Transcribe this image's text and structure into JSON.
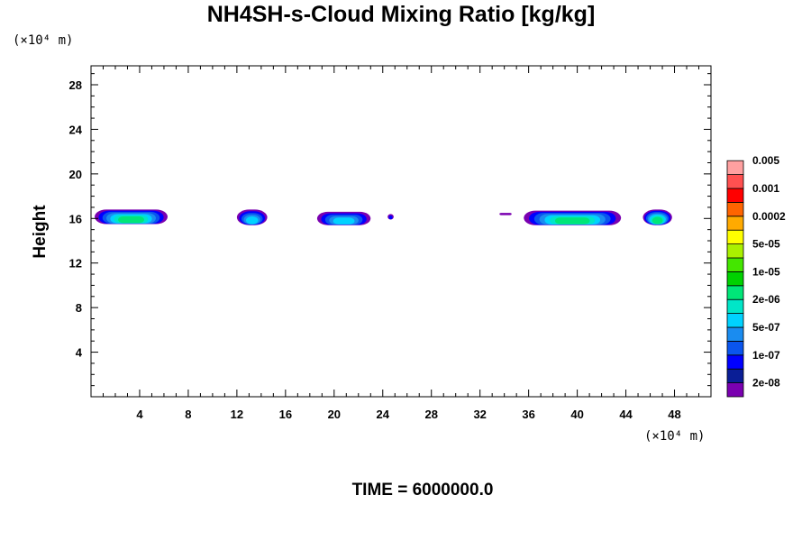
{
  "chart_data": {
    "type": "contour",
    "title": "NH4SH-s-Cloud Mixing Ratio [kg/kg]",
    "xlabel": "",
    "ylabel": "Height",
    "x_unit": "(×10⁴ m)",
    "y_unit": "(×10⁴ m)",
    "xlim": [
      0,
      51
    ],
    "ylim": [
      0,
      29.7
    ],
    "x_ticks": [
      4,
      8,
      12,
      16,
      20,
      24,
      28,
      32,
      36,
      40,
      44,
      48
    ],
    "y_ticks": [
      4,
      8,
      12,
      16,
      20,
      24,
      28
    ],
    "colorbar": {
      "colors": [
        "#7a00b0",
        "#0a1e96",
        "#0000ff",
        "#0a55ee",
        "#1a8cf0",
        "#00d2ff",
        "#00e6c8",
        "#00e678",
        "#00d200",
        "#44e600",
        "#aaf000",
        "#ffff00",
        "#ffaa00",
        "#ff6400",
        "#ff0000",
        "#ff5050",
        "#ffa0a0"
      ],
      "labels": [
        "2e-08",
        "1e-07",
        "5e-07",
        "2e-06",
        "1e-05",
        "5e-05",
        "0.0002",
        "0.001",
        "0.005"
      ]
    },
    "cloud_patches": [
      {
        "x_start": 0.3,
        "x_end": 6.3,
        "y_bottom": 15.5,
        "y_top": 16.8,
        "peak_level": "2e-06"
      },
      {
        "x_start": 12.0,
        "x_end": 14.5,
        "y_bottom": 15.4,
        "y_top": 16.8,
        "peak_level": "5e-07"
      },
      {
        "x_start": 18.6,
        "x_end": 23.0,
        "y_bottom": 15.4,
        "y_top": 16.6,
        "peak_level": "5e-07"
      },
      {
        "x_start": 24.4,
        "x_end": 24.9,
        "y_bottom": 15.9,
        "y_top": 16.4,
        "peak_level": "1e-07"
      },
      {
        "x_start": 33.6,
        "x_end": 34.6,
        "y_bottom": 16.3,
        "y_top": 16.5,
        "peak_level": "2e-08"
      },
      {
        "x_start": 35.6,
        "x_end": 43.6,
        "y_bottom": 15.4,
        "y_top": 16.7,
        "peak_level": "2e-06"
      },
      {
        "x_start": 45.4,
        "x_end": 47.8,
        "y_bottom": 15.4,
        "y_top": 16.8,
        "peak_level": "2e-06"
      }
    ]
  },
  "footer": {
    "time_label": "TIME = 6000000.0"
  }
}
